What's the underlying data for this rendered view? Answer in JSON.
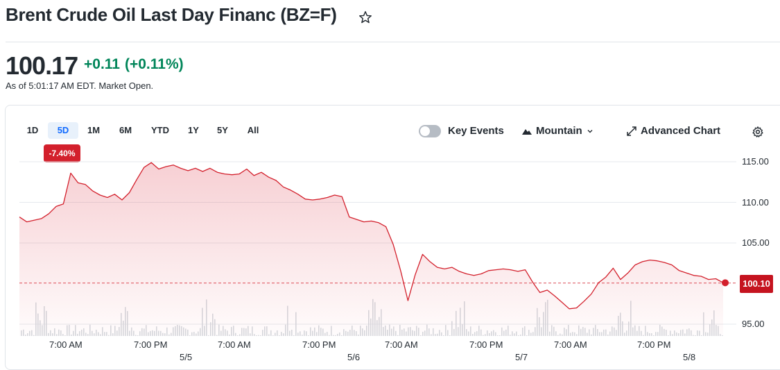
{
  "header": {
    "title": "Brent Crude Oil Last Day Financ (BZ=F)",
    "price": "100.17",
    "change": "+0.11",
    "change_pct": "(+0.11%)",
    "as_of": "As of 5:01:17 AM EDT. Market Open."
  },
  "colors": {
    "positive": "#008559",
    "negative": "#d3202c",
    "accent": "#0f69ff"
  },
  "toolbar": {
    "ranges": [
      "1D",
      "5D",
      "1M",
      "6M",
      "YTD",
      "1Y",
      "5Y",
      "All"
    ],
    "active_range": "5D",
    "range_change": "-7.40%",
    "key_events_label": "Key Events",
    "key_events_on": false,
    "chart_type_label": "Mountain",
    "advanced_label": "Advanced Chart",
    "icons": [
      "star-icon",
      "mountain-icon",
      "chevron-down-icon",
      "expand-icon",
      "gear-icon"
    ]
  },
  "chart_data": {
    "type": "area",
    "title": "",
    "y_ticks": [
      "115.00",
      "110.00",
      "105.00",
      "95.00"
    ],
    "ylim": [
      94.5,
      115.5
    ],
    "x_tick_labels": [
      "7:00 AM",
      "7:00 PM",
      "7:00 AM",
      "7:00 PM",
      "7:00 AM",
      "7:00 PM",
      "7:00 AM",
      "7:00 PM"
    ],
    "date_labels": [
      "5/5",
      "5/6",
      "5/7",
      "5/8"
    ],
    "last_price_label": "100.10",
    "last_price": 100.1,
    "previous_close": 100.06,
    "series": [
      {
        "values": [
          108.2,
          107.6,
          107.8,
          108.0,
          108.6,
          109.5,
          109.8,
          113.6,
          112.4,
          112.2,
          111.4,
          110.9,
          110.6,
          111.0,
          110.3,
          111.2,
          112.8,
          114.3,
          114.9,
          114.1,
          114.4,
          114.6,
          114.2,
          113.9,
          114.2,
          113.8,
          114.2,
          113.7,
          113.5,
          113.4,
          113.5,
          114.1,
          113.3,
          113.7,
          113.1,
          112.7,
          111.9,
          111.5,
          111.0,
          110.4,
          110.3,
          110.4,
          110.6,
          110.9,
          110.7,
          108.2,
          107.9,
          107.6,
          107.7,
          107.5,
          107.0,
          104.8,
          101.6,
          97.9,
          101.1,
          103.6,
          102.7,
          102.0,
          101.8,
          102.0,
          101.5,
          101.2,
          101.0,
          101.2,
          101.6,
          101.7,
          101.8,
          101.7,
          101.5,
          101.7,
          100.2,
          98.9,
          99.2,
          98.5,
          97.7,
          96.9,
          97.0,
          97.8,
          98.7,
          100.1,
          100.8,
          101.9,
          100.5,
          101.3,
          102.3,
          102.7,
          102.9,
          102.8,
          102.6,
          102.3,
          101.6,
          101.3,
          101.0,
          100.9,
          100.5,
          100.6,
          100.1
        ]
      }
    ]
  },
  "plot": {
    "x0": 28,
    "x1": 1043,
    "price_y0": 233,
    "price_y1": 467,
    "vol_bottom": 484,
    "vol_max_h": 55
  }
}
